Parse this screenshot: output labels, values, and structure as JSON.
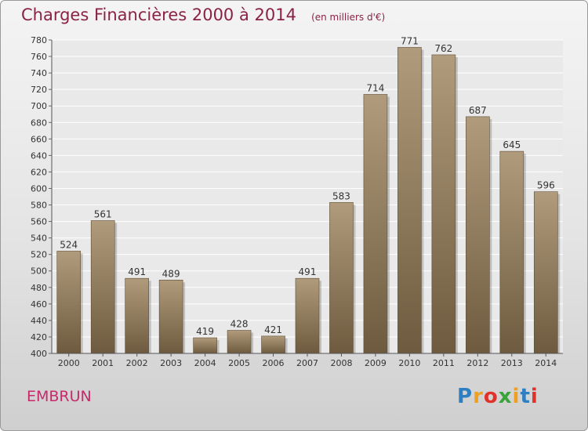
{
  "header": {
    "title": "Charges Financières 2000 à 2014",
    "subtitle": "(en milliers d'€)"
  },
  "footer": {
    "commune": "EMBRUN",
    "logo_text": "Proxiti"
  },
  "colors": {
    "title": "#8a2244",
    "commune": "#c9286a",
    "bar_top": "#b09c7c",
    "bar_bottom": "#6e5a3e"
  },
  "chart_data": {
    "type": "bar",
    "title": "Charges Financières 2000 à 2014",
    "subtitle": "(en milliers d'€)",
    "categories": [
      "2000",
      "2001",
      "2002",
      "2003",
      "2004",
      "2005",
      "2006",
      "2007",
      "2008",
      "2009",
      "2010",
      "2011",
      "2012",
      "2013",
      "2014"
    ],
    "values": [
      524,
      561,
      491,
      489,
      419,
      428,
      421,
      491,
      583,
      714,
      771,
      762,
      687,
      645,
      596
    ],
    "ylim": [
      400,
      780
    ],
    "yticks": [
      400,
      420,
      440,
      460,
      480,
      500,
      520,
      540,
      560,
      580,
      600,
      620,
      640,
      660,
      680,
      700,
      720,
      740,
      760,
      780
    ],
    "grid": true,
    "legend": "none"
  }
}
